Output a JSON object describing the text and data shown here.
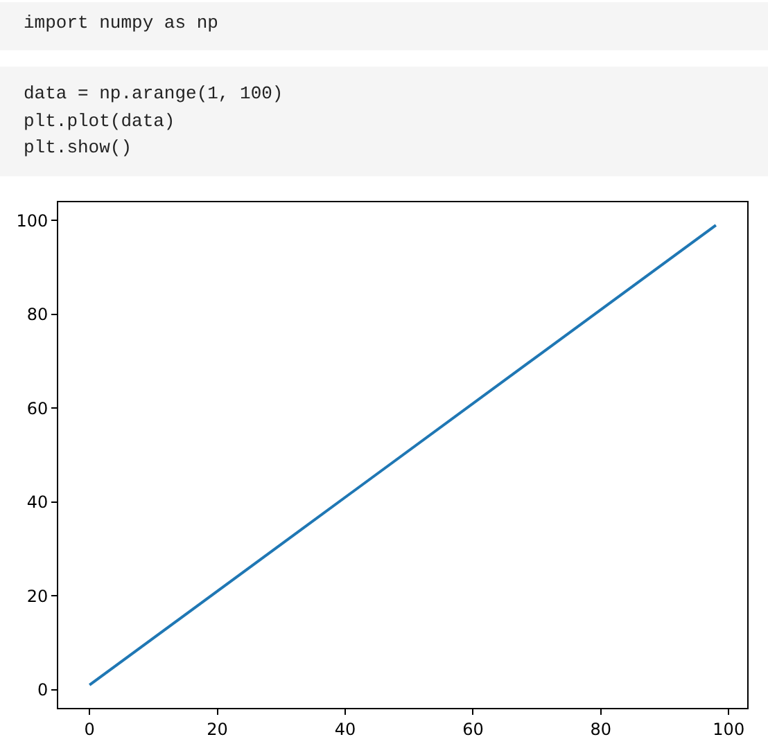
{
  "chart_data": {
    "type": "line",
    "annotations": [
      "import numpy as np",
      "data = np.arange(1, 100)",
      "plt.plot(data)",
      "plt.show()"
    ],
    "x": [
      0,
      98
    ],
    "series": [
      {
        "color": "#1f77b4",
        "values": [
          1,
          99
        ]
      }
    ],
    "xlim": [
      -4.9,
      102.9
    ],
    "ylim": [
      -3.9,
      103.9
    ],
    "xticks": [
      0,
      20,
      40,
      60,
      80,
      100
    ],
    "yticks": [
      0,
      20,
      40,
      60,
      80,
      100
    ],
    "marker": "none",
    "line_style": "solid"
  }
}
